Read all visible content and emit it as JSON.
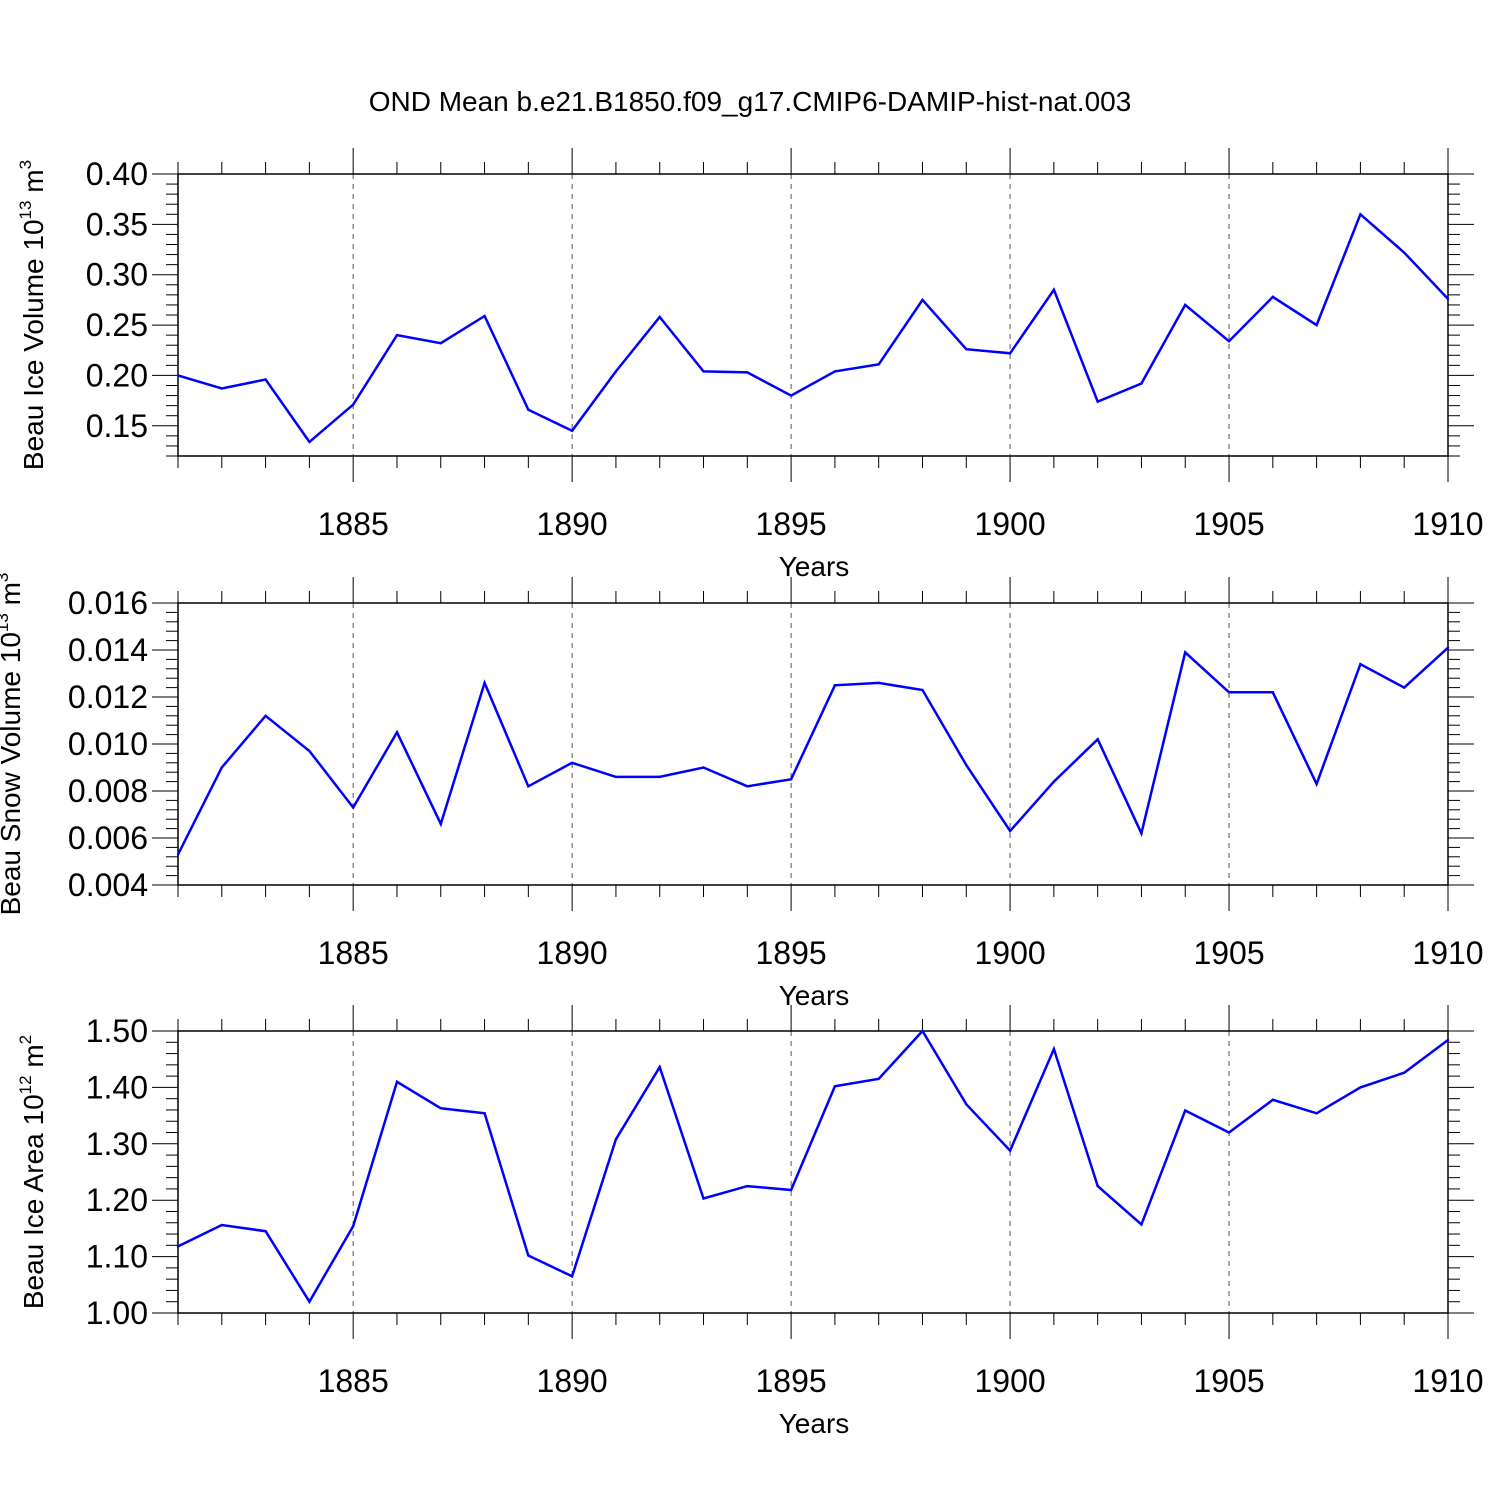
{
  "figure": {
    "title": "OND Mean b.e21.B1850.f09_g17.CMIP6-DAMIP-hist-nat.003"
  },
  "chart_data": [
    {
      "type": "line",
      "xlabel": "Years",
      "ylabel_main": "Beau Ice Volume 10",
      "ylabel_exp": "13",
      "ylabel_unit": " m",
      "ylabel_unit_exp": "3",
      "xlim": [
        1881,
        1910
      ],
      "ylim": [
        0.12,
        0.4
      ],
      "xticks": [
        1885,
        1890,
        1895,
        1900,
        1905,
        1910
      ],
      "xtick_labels": [
        "1885",
        "1890",
        "1895",
        "1900",
        "1905",
        "1910"
      ],
      "yticks": [
        0.15,
        0.2,
        0.25,
        0.3,
        0.35,
        0.4
      ],
      "ytick_labels": [
        "0.15",
        "0.20",
        "0.25",
        "0.30",
        "0.35",
        "0.40"
      ],
      "grid": "vertical dashed at major x ticks",
      "line_color": "#0000ff",
      "x": [
        1881,
        1882,
        1883,
        1884,
        1885,
        1886,
        1887,
        1888,
        1889,
        1890,
        1891,
        1892,
        1893,
        1894,
        1895,
        1896,
        1897,
        1898,
        1899,
        1900,
        1901,
        1902,
        1903,
        1904,
        1905,
        1906,
        1907,
        1908,
        1909,
        1910
      ],
      "values": [
        0.2,
        0.187,
        0.196,
        0.134,
        0.171,
        0.24,
        0.232,
        0.259,
        0.166,
        0.145,
        0.204,
        0.258,
        0.204,
        0.203,
        0.18,
        0.204,
        0.211,
        0.275,
        0.226,
        0.222,
        0.285,
        0.174,
        0.192,
        0.27,
        0.234,
        0.278,
        0.25,
        0.36,
        0.322,
        0.276
      ]
    },
    {
      "type": "line",
      "xlabel": "Years",
      "ylabel_main": "Beau Snow Volume 10",
      "ylabel_exp": "13",
      "ylabel_unit": " m",
      "ylabel_unit_exp": "3",
      "xlim": [
        1881,
        1910
      ],
      "ylim": [
        0.004,
        0.016
      ],
      "xticks": [
        1885,
        1890,
        1895,
        1900,
        1905,
        1910
      ],
      "xtick_labels": [
        "1885",
        "1890",
        "1895",
        "1900",
        "1905",
        "1910"
      ],
      "yticks": [
        0.004,
        0.006,
        0.008,
        0.01,
        0.012,
        0.014,
        0.016
      ],
      "ytick_labels": [
        "0.004",
        "0.006",
        "0.008",
        "0.010",
        "0.012",
        "0.014",
        "0.016"
      ],
      "grid": "vertical dashed at major x ticks",
      "line_color": "#0000ff",
      "x": [
        1881,
        1882,
        1883,
        1884,
        1885,
        1886,
        1887,
        1888,
        1889,
        1890,
        1891,
        1892,
        1893,
        1894,
        1895,
        1896,
        1897,
        1898,
        1899,
        1900,
        1901,
        1902,
        1903,
        1904,
        1905,
        1906,
        1907,
        1908,
        1909,
        1910
      ],
      "values": [
        0.0053,
        0.009,
        0.0112,
        0.0097,
        0.0073,
        0.0105,
        0.0066,
        0.0126,
        0.0082,
        0.0092,
        0.0086,
        0.0086,
        0.009,
        0.0082,
        0.0085,
        0.0125,
        0.0126,
        0.0123,
        0.0091,
        0.0063,
        0.0084,
        0.0102,
        0.0062,
        0.0139,
        0.0122,
        0.0122,
        0.0083,
        0.0134,
        0.0124,
        0.0141
      ]
    },
    {
      "type": "line",
      "xlabel": "Years",
      "ylabel_main": "Beau Ice Area 10",
      "ylabel_exp": "12",
      "ylabel_unit": " m",
      "ylabel_unit_exp": "2",
      "xlim": [
        1881,
        1910
      ],
      "ylim": [
        1.0,
        1.5
      ],
      "xticks": [
        1885,
        1890,
        1895,
        1900,
        1905,
        1910
      ],
      "xtick_labels": [
        "1885",
        "1890",
        "1895",
        "1900",
        "1905",
        "1910"
      ],
      "yticks": [
        1.0,
        1.1,
        1.2,
        1.3,
        1.4,
        1.5
      ],
      "ytick_labels": [
        "1.00",
        "1.10",
        "1.20",
        "1.30",
        "1.40",
        "1.50"
      ],
      "grid": "vertical dashed at major x ticks",
      "line_color": "#0000ff",
      "x": [
        1881,
        1882,
        1883,
        1884,
        1885,
        1886,
        1887,
        1888,
        1889,
        1890,
        1891,
        1892,
        1893,
        1894,
        1895,
        1896,
        1897,
        1898,
        1899,
        1900,
        1901,
        1902,
        1903,
        1904,
        1905,
        1906,
        1907,
        1908,
        1909,
        1910
      ],
      "values": [
        1.118,
        1.156,
        1.145,
        1.02,
        1.154,
        1.41,
        1.363,
        1.354,
        1.102,
        1.065,
        1.308,
        1.436,
        1.203,
        1.225,
        1.218,
        1.402,
        1.415,
        1.5,
        1.37,
        1.288,
        1.468,
        1.225,
        1.157,
        1.359,
        1.32,
        1.378,
        1.354,
        1.4,
        1.426,
        1.484
      ]
    }
  ]
}
